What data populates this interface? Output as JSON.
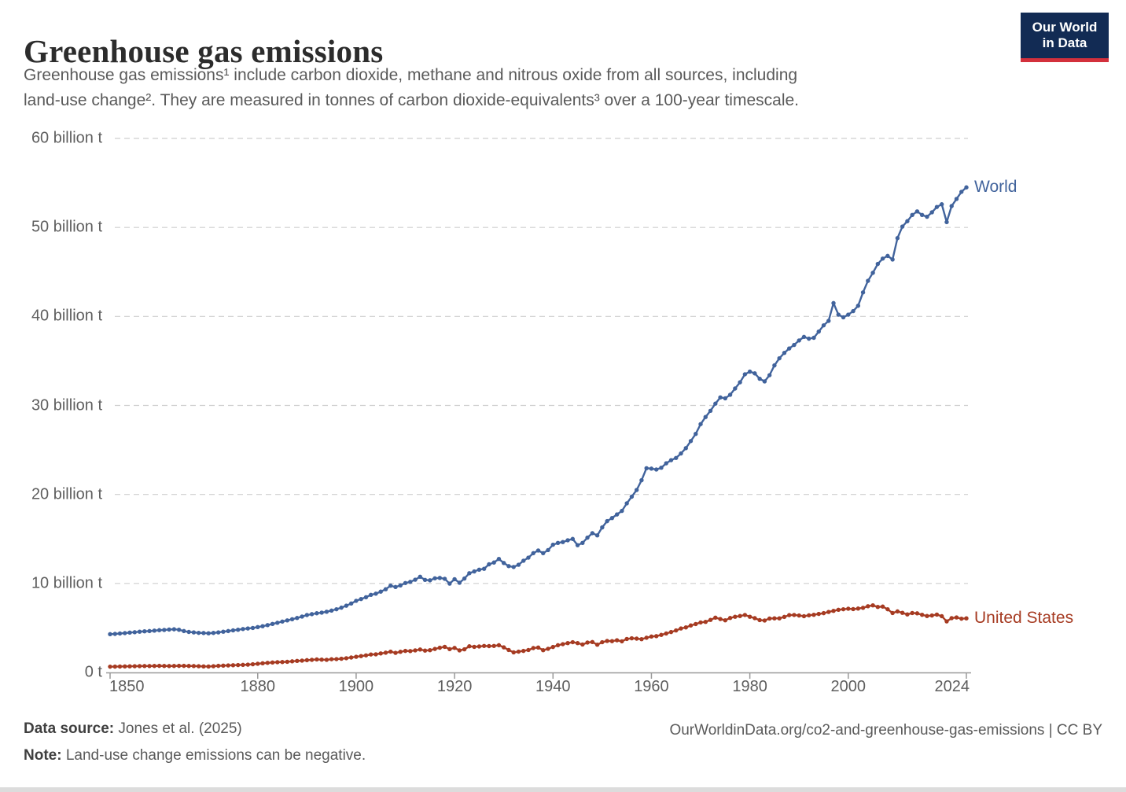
{
  "header": {
    "title": "Greenhouse gas emissions",
    "subtitle_line1": "Greenhouse gas emissions¹ include carbon dioxide, methane and nitrous oxide from all sources, including",
    "subtitle_line2": "land-use change². They are measured in tonnes of carbon dioxide-equivalents³ over a 100-year timescale."
  },
  "logo": {
    "line1": "Our World",
    "line2": "in Data",
    "bg_color": "#122B54",
    "bar_color": "#D3303C"
  },
  "chart_data": {
    "type": "line",
    "title": "Greenhouse gas emissions",
    "xlabel": "",
    "ylabel": "",
    "unit": "billion tonnes of carbon dioxide-equivalents",
    "xlim": [
      1850,
      2024
    ],
    "ylim": [
      0,
      60
    ],
    "grid": "horizontal-dashed",
    "legend_position": "line-end-labels",
    "marker": "dot",
    "x_ticks": [
      1850,
      1880,
      1900,
      1920,
      1940,
      1960,
      1980,
      2000,
      2024
    ],
    "y_ticks": [
      {
        "value": 0,
        "label": "0 t"
      },
      {
        "value": 10,
        "label": "10 billion t"
      },
      {
        "value": 20,
        "label": "20 billion t"
      },
      {
        "value": 30,
        "label": "30 billion t"
      },
      {
        "value": 40,
        "label": "40 billion t"
      },
      {
        "value": 50,
        "label": "50 billion t"
      },
      {
        "value": 60,
        "label": "60 billion t"
      }
    ],
    "years": [
      1850,
      1851,
      1852,
      1853,
      1854,
      1855,
      1856,
      1857,
      1858,
      1859,
      1860,
      1861,
      1862,
      1863,
      1864,
      1865,
      1866,
      1867,
      1868,
      1869,
      1870,
      1871,
      1872,
      1873,
      1874,
      1875,
      1876,
      1877,
      1878,
      1879,
      1880,
      1881,
      1882,
      1883,
      1884,
      1885,
      1886,
      1887,
      1888,
      1889,
      1890,
      1891,
      1892,
      1893,
      1894,
      1895,
      1896,
      1897,
      1898,
      1899,
      1900,
      1901,
      1902,
      1903,
      1904,
      1905,
      1906,
      1907,
      1908,
      1909,
      1910,
      1911,
      1912,
      1913,
      1914,
      1915,
      1916,
      1917,
      1918,
      1919,
      1920,
      1921,
      1922,
      1923,
      1924,
      1925,
      1926,
      1927,
      1928,
      1929,
      1930,
      1931,
      1932,
      1933,
      1934,
      1935,
      1936,
      1937,
      1938,
      1939,
      1940,
      1941,
      1942,
      1943,
      1944,
      1945,
      1946,
      1947,
      1948,
      1949,
      1950,
      1951,
      1952,
      1953,
      1954,
      1955,
      1956,
      1957,
      1958,
      1959,
      1960,
      1961,
      1962,
      1963,
      1964,
      1965,
      1966,
      1967,
      1968,
      1969,
      1970,
      1971,
      1972,
      1973,
      1974,
      1975,
      1976,
      1977,
      1978,
      1979,
      1980,
      1981,
      1982,
      1983,
      1984,
      1985,
      1986,
      1987,
      1988,
      1989,
      1990,
      1991,
      1992,
      1993,
      1994,
      1995,
      1996,
      1997,
      1998,
      1999,
      2000,
      2001,
      2002,
      2003,
      2004,
      2005,
      2006,
      2007,
      2008,
      2009,
      2010,
      2011,
      2012,
      2013,
      2014,
      2015,
      2016,
      2017,
      2018,
      2019,
      2020,
      2021,
      2022,
      2023,
      2024
    ],
    "series": [
      {
        "id": "world",
        "name": "World",
        "color": "#41639C",
        "values": [
          4.3,
          4.33,
          4.38,
          4.42,
          4.48,
          4.52,
          4.58,
          4.62,
          4.65,
          4.7,
          4.75,
          4.78,
          4.82,
          4.85,
          4.8,
          4.65,
          4.55,
          4.5,
          4.45,
          4.43,
          4.4,
          4.44,
          4.5,
          4.58,
          4.65,
          4.73,
          4.8,
          4.88,
          4.94,
          5.0,
          5.1,
          5.2,
          5.32,
          5.45,
          5.58,
          5.72,
          5.85,
          5.98,
          6.12,
          6.28,
          6.45,
          6.55,
          6.65,
          6.72,
          6.82,
          6.95,
          7.1,
          7.28,
          7.5,
          7.75,
          8.05,
          8.25,
          8.45,
          8.72,
          8.85,
          9.08,
          9.35,
          9.75,
          9.6,
          9.78,
          10.05,
          10.18,
          10.42,
          10.75,
          10.4,
          10.35,
          10.58,
          10.62,
          10.52,
          9.98,
          10.48,
          10.08,
          10.55,
          11.15,
          11.35,
          11.55,
          11.65,
          12.15,
          12.35,
          12.75,
          12.3,
          11.95,
          11.85,
          12.1,
          12.55,
          12.9,
          13.4,
          13.7,
          13.4,
          13.75,
          14.35,
          14.55,
          14.65,
          14.85,
          15.0,
          14.3,
          14.55,
          15.15,
          15.65,
          15.4,
          16.3,
          17.0,
          17.35,
          17.75,
          18.15,
          19.0,
          19.75,
          20.5,
          21.6,
          22.95,
          22.9,
          22.8,
          23.0,
          23.5,
          23.85,
          24.1,
          24.6,
          25.2,
          26.0,
          26.8,
          27.9,
          28.7,
          29.4,
          30.2,
          30.9,
          30.8,
          31.2,
          31.9,
          32.6,
          33.5,
          33.8,
          33.6,
          33.0,
          32.7,
          33.4,
          34.5,
          35.3,
          35.9,
          36.4,
          36.8,
          37.3,
          37.7,
          37.5,
          37.6,
          38.3,
          39.0,
          39.5,
          41.5,
          40.2,
          39.9,
          40.2,
          40.6,
          41.2,
          42.7,
          44.0,
          44.9,
          45.9,
          46.5,
          46.8,
          46.4,
          48.8,
          50.1,
          50.7,
          51.4,
          51.8,
          51.4,
          51.2,
          51.7,
          52.3,
          52.6,
          50.6,
          52.4,
          53.2,
          54.0,
          54.5
        ]
      },
      {
        "id": "united-states",
        "name": "United States",
        "color": "#A63B22",
        "values": [
          0.65,
          0.66,
          0.67,
          0.68,
          0.69,
          0.7,
          0.71,
          0.72,
          0.72,
          0.73,
          0.74,
          0.73,
          0.72,
          0.73,
          0.74,
          0.74,
          0.73,
          0.72,
          0.7,
          0.68,
          0.67,
          0.7,
          0.74,
          0.77,
          0.79,
          0.81,
          0.83,
          0.85,
          0.88,
          0.92,
          0.98,
          1.03,
          1.08,
          1.12,
          1.15,
          1.17,
          1.2,
          1.25,
          1.3,
          1.33,
          1.38,
          1.42,
          1.46,
          1.44,
          1.42,
          1.49,
          1.5,
          1.54,
          1.6,
          1.68,
          1.76,
          1.84,
          1.92,
          2.02,
          2.04,
          2.14,
          2.22,
          2.34,
          2.2,
          2.32,
          2.42,
          2.4,
          2.48,
          2.58,
          2.46,
          2.5,
          2.64,
          2.78,
          2.88,
          2.62,
          2.76,
          2.48,
          2.6,
          2.94,
          2.88,
          2.92,
          2.98,
          2.96,
          2.98,
          3.06,
          2.82,
          2.52,
          2.26,
          2.34,
          2.42,
          2.52,
          2.74,
          2.8,
          2.5,
          2.66,
          2.86,
          3.06,
          3.18,
          3.3,
          3.4,
          3.3,
          3.14,
          3.36,
          3.42,
          3.12,
          3.4,
          3.54,
          3.52,
          3.62,
          3.5,
          3.76,
          3.84,
          3.8,
          3.74,
          3.9,
          4.04,
          4.08,
          4.22,
          4.38,
          4.54,
          4.72,
          4.94,
          5.06,
          5.28,
          5.44,
          5.62,
          5.68,
          5.9,
          6.16,
          6.0,
          5.86,
          6.12,
          6.26,
          6.34,
          6.46,
          6.26,
          6.1,
          5.88,
          5.84,
          6.06,
          6.08,
          6.08,
          6.24,
          6.44,
          6.46,
          6.4,
          6.32,
          6.42,
          6.48,
          6.58,
          6.66,
          6.8,
          6.92,
          7.04,
          7.1,
          7.16,
          7.12,
          7.18,
          7.26,
          7.44,
          7.54,
          7.36,
          7.4,
          7.1,
          6.68,
          6.86,
          6.7,
          6.52,
          6.68,
          6.64,
          6.48,
          6.34,
          6.4,
          6.5,
          6.32,
          5.74,
          6.1,
          6.18,
          6.04,
          6.08
        ]
      }
    ]
  },
  "footer": {
    "data_source_label": "Data source:",
    "data_source_value": "Jones et al. (2025)",
    "note_label": "Note:",
    "note_value": "Land-use change emissions can be negative.",
    "citation": "OurWorldinData.org/co2-and-greenhouse-gas-emissions | CC BY"
  }
}
